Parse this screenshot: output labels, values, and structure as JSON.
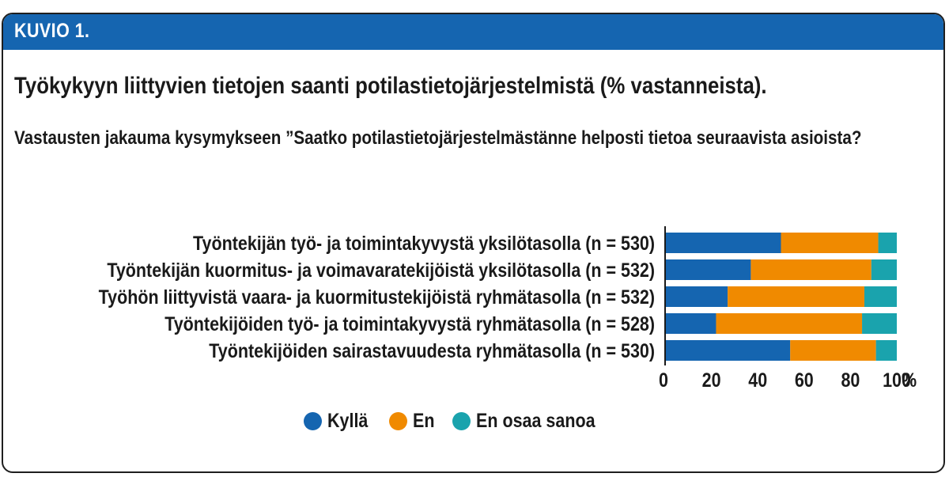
{
  "header": {
    "label": "KUVIO 1."
  },
  "chart_data": {
    "type": "bar",
    "orientation": "horizontal",
    "stacked": true,
    "title": "Työkykyyn liittyvien tietojen saanti potilastietojärjestelmistä (% vastanneista).",
    "subtitle": "Vastausten jakauma kysymykseen ”Saatko potilastietojärjestelmästänne helposti tietoa seuraavista asioista?",
    "categories": [
      "Työntekijän työ- ja toimintakyvystä yksilötasolla (n = 530)",
      "Työntekijän kuormitus- ja voimavaratekijöistä yksilötasolla (n = 532)",
      "Työhön liittyvistä vaara- ja kuormitustekijöistä ryhmätasolla (n = 532)",
      "Työntekijöiden työ- ja toimintakyvystä ryhmätasolla (n = 528)",
      "Työntekijöiden sairastavuudesta ryhmätasolla (n = 530)"
    ],
    "series": [
      {
        "name": "Kyllä",
        "color": "#1565b0",
        "values": [
          50,
          37,
          27,
          22,
          54
        ]
      },
      {
        "name": "En",
        "color": "#f08a00",
        "values": [
          42,
          52,
          59,
          63,
          37
        ]
      },
      {
        "name": "En osaa sanoa",
        "color": "#1aa3ad",
        "values": [
          8,
          11,
          14,
          15,
          9
        ]
      }
    ],
    "x_ticks": [
      "0",
      "20",
      "40",
      "60",
      "80",
      "100"
    ],
    "x_unit": "%",
    "xlim": [
      0,
      100
    ],
    "legend_position": "bottom"
  }
}
